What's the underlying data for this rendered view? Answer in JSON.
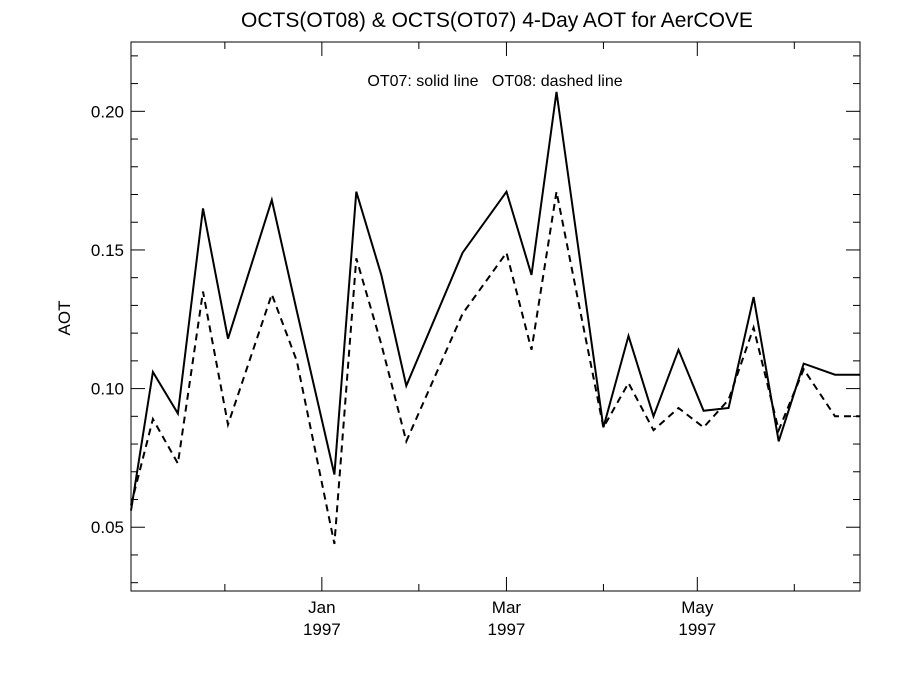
{
  "chart_data": {
    "type": "line",
    "title": "OCTS(OT08) & OCTS(OT07) 4-Day AOT for AerCOVE",
    "ylabel": "AOT",
    "xlabel": "",
    "annotation": "OT07: solid line   OT08: dashed line",
    "ylim": [
      0.027,
      0.225
    ],
    "xlim": [
      "1996-11-01",
      "1997-06-22"
    ],
    "y_ticks": [
      "0.05",
      "0.10",
      "0.15",
      "0.20"
    ],
    "x_ticks": [
      {
        "month": "Jan",
        "year": "1997",
        "date": "1997-01-01"
      },
      {
        "month": "Mar",
        "year": "1997",
        "date": "1997-03-01"
      },
      {
        "month": "May",
        "year": "1997",
        "date": "1997-05-01"
      }
    ],
    "grid": false,
    "x": [
      "1996-11-01",
      "1996-11-08",
      "1996-11-16",
      "1996-11-24",
      "1996-12-02",
      "1996-12-16",
      "1996-12-24",
      "1997-01-05",
      "1997-01-12",
      "1997-01-20",
      "1997-01-28",
      "1997-02-15",
      "1997-03-01",
      "1997-03-09",
      "1997-03-17",
      "1997-04-01",
      "1997-04-09",
      "1997-04-17",
      "1997-04-25",
      "1997-05-03",
      "1997-05-11",
      "1997-05-19",
      "1997-05-27",
      "1997-06-04",
      "1997-06-14",
      "1997-06-22"
    ],
    "series": [
      {
        "name": "OT07",
        "style": "solid",
        "values": [
          0.056,
          0.106,
          0.091,
          0.165,
          0.118,
          0.168,
          0.128,
          0.069,
          0.171,
          0.141,
          0.101,
          0.149,
          0.171,
          0.141,
          0.207,
          0.086,
          0.119,
          0.09,
          0.114,
          0.092,
          0.093,
          0.133,
          0.081,
          0.109,
          0.105,
          0.105
        ]
      },
      {
        "name": "OT08",
        "style": "dashed",
        "values": [
          0.058,
          0.089,
          0.073,
          0.135,
          0.087,
          0.134,
          0.11,
          0.044,
          0.147,
          0.116,
          0.081,
          0.127,
          0.149,
          0.114,
          0.171,
          0.086,
          0.102,
          0.085,
          0.093,
          0.086,
          0.096,
          0.122,
          0.085,
          0.107,
          0.09,
          0.09
        ]
      }
    ]
  }
}
